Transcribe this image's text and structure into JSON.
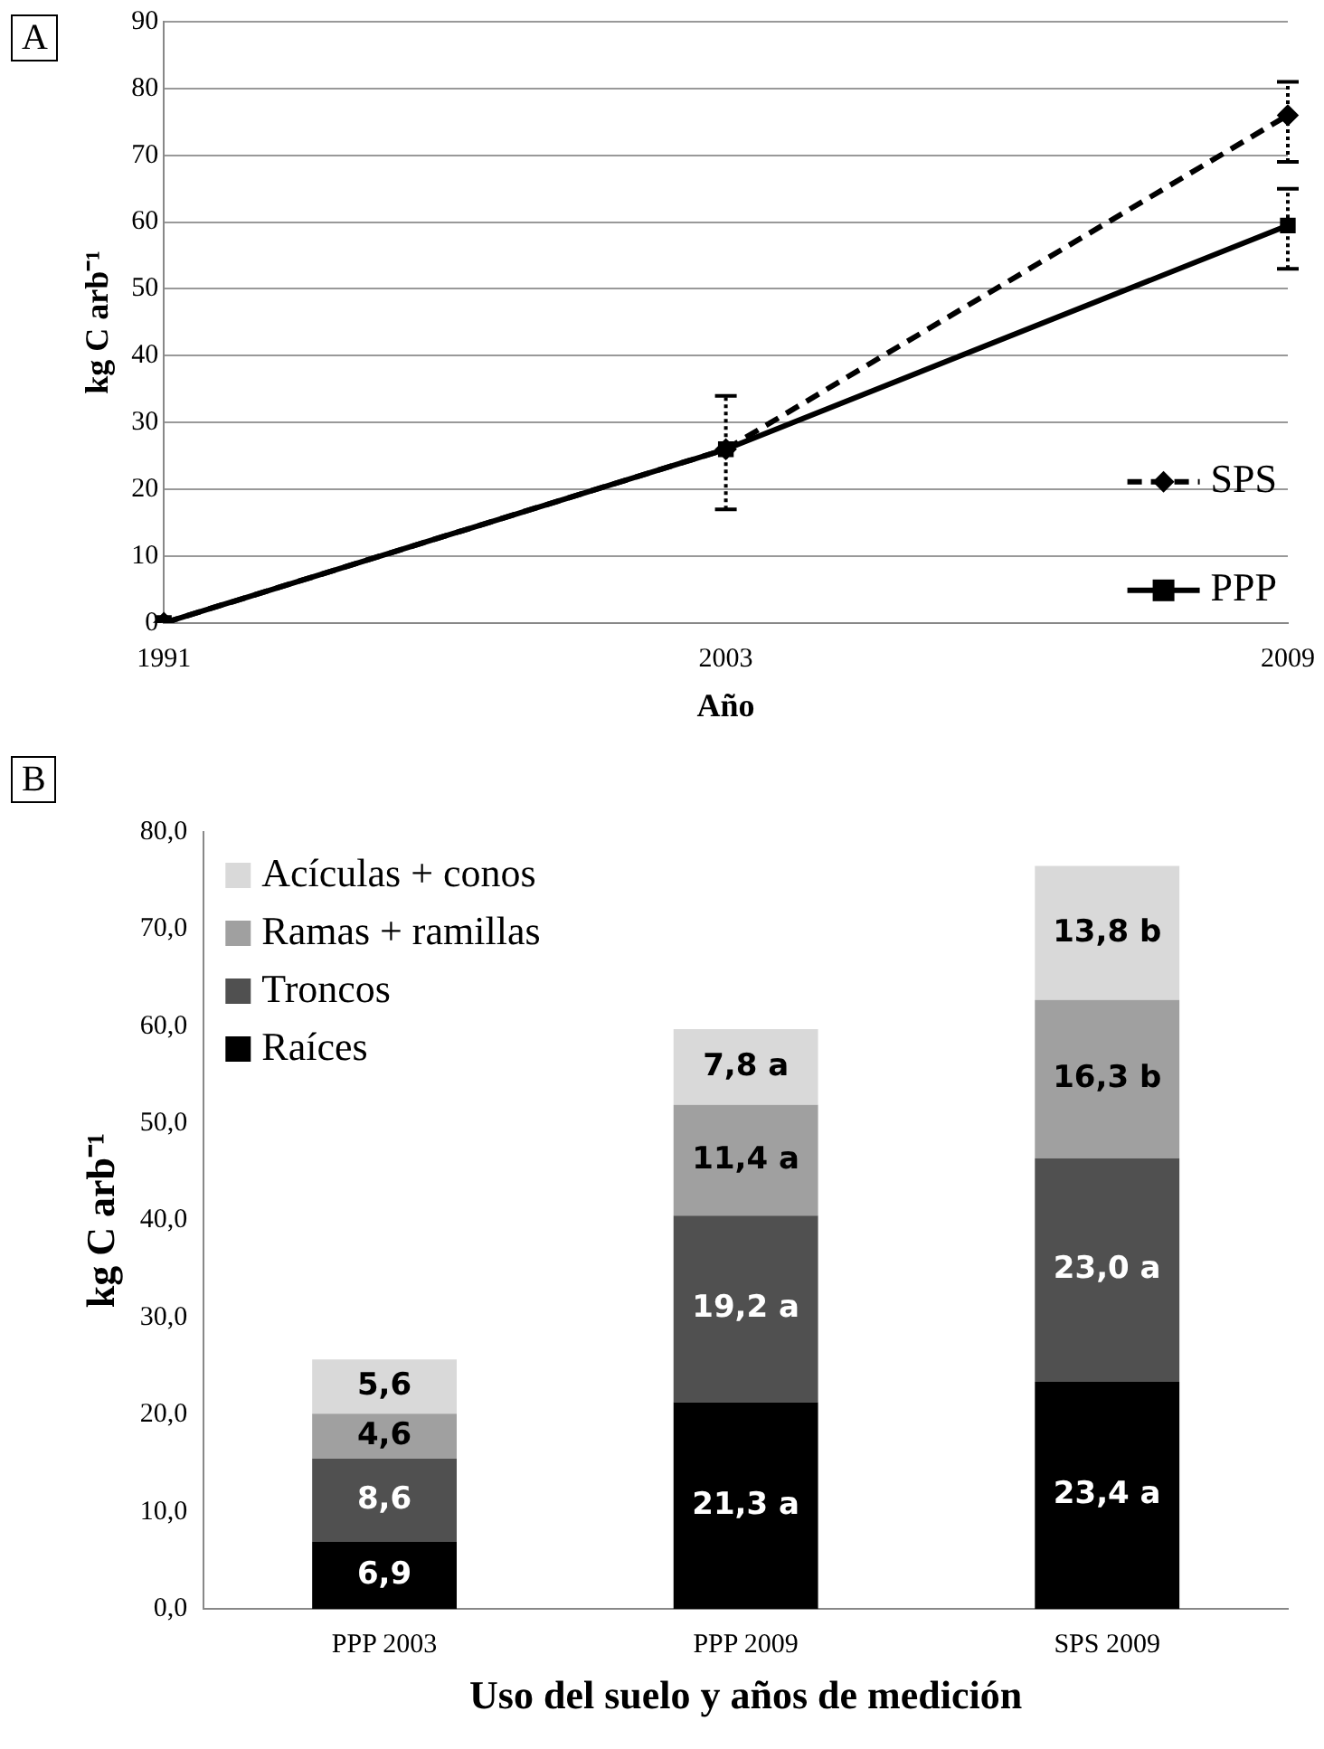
{
  "chart_data": [
    {
      "type": "line",
      "title": "A",
      "xlabel": "Año",
      "ylabel": "kg C arb⁻¹",
      "categories": [
        "1991",
        "2003",
        "2009"
      ],
      "ylim": [
        0,
        90
      ],
      "yticks": [
        0,
        10,
        20,
        30,
        40,
        50,
        60,
        70,
        80,
        90
      ],
      "grid": "y",
      "legend": "bottom right",
      "series": [
        {
          "name": "SPS",
          "color": "#000000",
          "line_style": "dashed",
          "marker": "diamond",
          "values": [
            0,
            26,
            76
          ],
          "errors": [
            null,
            null,
            [
              69,
              81
            ]
          ]
        },
        {
          "name": "PPP",
          "color": "#000000",
          "line_style": "solid",
          "marker": "square",
          "values": [
            0,
            26,
            59.5
          ],
          "errors": [
            null,
            [
              17,
              34
            ],
            [
              53,
              65
            ]
          ]
        }
      ]
    },
    {
      "type": "bar",
      "stacked": true,
      "title": "B",
      "xlabel": "Uso del suelo y años de medición",
      "ylabel": "kg C arb⁻¹",
      "categories": [
        "PPP 2003",
        "PPP 2009",
        "SPS 2009"
      ],
      "ylim": [
        0,
        80
      ],
      "yticks": [
        {
          "value": 0,
          "label": "0,0"
        },
        {
          "value": 10,
          "label": "10,0"
        },
        {
          "value": 20,
          "label": "20,0"
        },
        {
          "value": 30,
          "label": "30,0"
        },
        {
          "value": 40,
          "label": "40,0"
        },
        {
          "value": 50,
          "label": "50,0"
        },
        {
          "value": 60,
          "label": "60,0"
        },
        {
          "value": 70,
          "label": "70,0"
        },
        {
          "value": 80,
          "label": "80,0"
        }
      ],
      "grid": false,
      "legend": "top left",
      "series": [
        {
          "name": "Raíces",
          "color": "#000000",
          "values": [
            6.9,
            21.3,
            23.4
          ],
          "value_labels": [
            "6,9",
            "21,3 a",
            "23,4 a"
          ]
        },
        {
          "name": "Troncos",
          "color": "#505050",
          "values": [
            8.6,
            19.2,
            23.0
          ],
          "value_labels": [
            "8,6",
            "19,2 a",
            "23,0 a"
          ]
        },
        {
          "name": "Ramas + ramillas",
          "color": "#a0a0a0",
          "values": [
            4.6,
            11.4,
            16.3
          ],
          "value_labels": [
            "4,6",
            "11,4 a",
            "16,3 b"
          ]
        },
        {
          "name": "Acículas + conos",
          "color": "#d9d9d9",
          "values": [
            5.6,
            7.8,
            13.8
          ],
          "value_labels": [
            "5,6",
            "7,8 a",
            "13,8 b"
          ]
        }
      ]
    }
  ]
}
